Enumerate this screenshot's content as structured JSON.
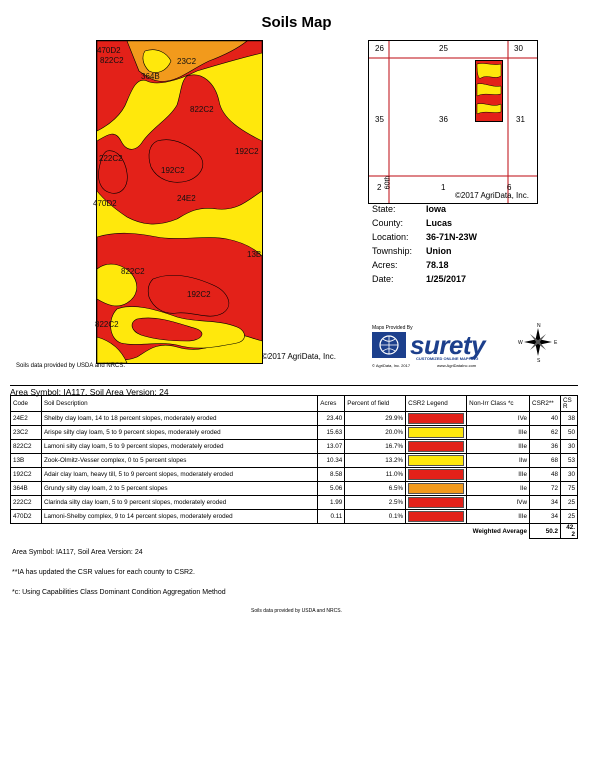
{
  "title": "Soils Map",
  "map": {
    "labels": [
      "470D2",
      "822C2",
      "23C2",
      "364B",
      "822C2",
      "222C2",
      "192C2",
      "192C2",
      "470D2",
      "24E2",
      "13B",
      "822C2",
      "192C2",
      "822C2"
    ],
    "copyright": "©2017 AgriData, Inc.",
    "data_note": "Soils data provided by USDA and NRCS.",
    "colors": {
      "red": "#e32119",
      "yellow": "#ffe80c",
      "orange": "#f29a1c"
    }
  },
  "locator": {
    "sections": [
      "26",
      "25",
      "30",
      "35",
      "36",
      "31",
      "2",
      "1",
      "6"
    ],
    "road_label": "60th",
    "copyright": "©2017 AgriData, Inc."
  },
  "info": {
    "state_label": "State:",
    "state": "Iowa",
    "county_label": "County:",
    "county": "Lucas",
    "location_label": "Location:",
    "location": "36-71N-23W",
    "township_label": "Township:",
    "township": "Union",
    "acres_label": "Acres:",
    "acres": "78.18",
    "date_label": "Date:",
    "date": "1/25/2017"
  },
  "logo": {
    "provided_by": "Maps Provided By",
    "word": "surety",
    "tagline": "CUSTOMIZED ONLINE MAPPING",
    "copyright": "© AgriData, Inc. 2017",
    "url": "www.AgriDataInc.com",
    "compass": {
      "n": "N",
      "s": "S",
      "e": "E",
      "w": "W"
    }
  },
  "table": {
    "area_symbol": "Area Symbol: IA117, Soil Area Version: 24",
    "headers": [
      "Code",
      "Soil Description",
      "Acres",
      "Percent of field",
      "CSR2 Legend",
      "Non-Irr Class *c",
      "CSR2**",
      "CS R"
    ],
    "rows": [
      {
        "code": "24E2",
        "desc": "Shelby clay loam, 14 to 18 percent slopes, moderately eroded",
        "acres": "23.40",
        "pct": "29.9%",
        "color": "#e32119",
        "cls": "IVe",
        "csr2": "40",
        "csr": "38"
      },
      {
        "code": "23C2",
        "desc": "Arispe silty clay loam, 5 to 9 percent slopes, moderately eroded",
        "acres": "15.63",
        "pct": "20.0%",
        "color": "#ffe80c",
        "cls": "IIIe",
        "csr2": "62",
        "csr": "50"
      },
      {
        "code": "822C2",
        "desc": "Lamoni silty clay loam, 5 to 9 percent slopes, moderately eroded",
        "acres": "13.07",
        "pct": "16.7%",
        "color": "#e32119",
        "cls": "IIIe",
        "csr2": "36",
        "csr": "30"
      },
      {
        "code": "13B",
        "desc": "Zook-Olmitz-Vesser complex, 0 to 5 percent slopes",
        "acres": "10.34",
        "pct": "13.2%",
        "color": "#ffe80c",
        "cls": "IIw",
        "csr2": "68",
        "csr": "53"
      },
      {
        "code": "192C2",
        "desc": "Adair clay loam, heavy till, 5 to 9 percent slopes, moderately eroded",
        "acres": "8.58",
        "pct": "11.0%",
        "color": "#e32119",
        "cls": "IIIe",
        "csr2": "48",
        "csr": "30"
      },
      {
        "code": "364B",
        "desc": "Grundy silty clay loam, 2 to 5 percent slopes",
        "acres": "5.06",
        "pct": "6.5%",
        "color": "#f29a1c",
        "cls": "IIe",
        "csr2": "72",
        "csr": "75"
      },
      {
        "code": "222C2",
        "desc": "Clarinda silty clay loam, 5 to 9 percent slopes, moderately eroded",
        "acres": "1.99",
        "pct": "2.5%",
        "color": "#e32119",
        "cls": "IVw",
        "csr2": "34",
        "csr": "25"
      },
      {
        "code": "470D2",
        "desc": "Lamoni-Shelby complex, 9 to 14 percent slopes, moderately eroded",
        "acres": "0.11",
        "pct": "0.1%",
        "color": "#e32119",
        "cls": "IIIe",
        "csr2": "34",
        "csr": "25"
      }
    ],
    "weighted_label": "Weighted Average",
    "weighted_csr2": "50.2",
    "weighted_csr": "42.2"
  },
  "notes": {
    "area_symbol": "Area Symbol: IA117, Soil Area Version: 24",
    "csr_note": "**IA has updated the CSR values for each county to CSR2.",
    "c_note": "*c: Using Capabilities Class Dominant Condition Aggregation Method",
    "footer": "Soils data provided by USDA and NRCS."
  }
}
